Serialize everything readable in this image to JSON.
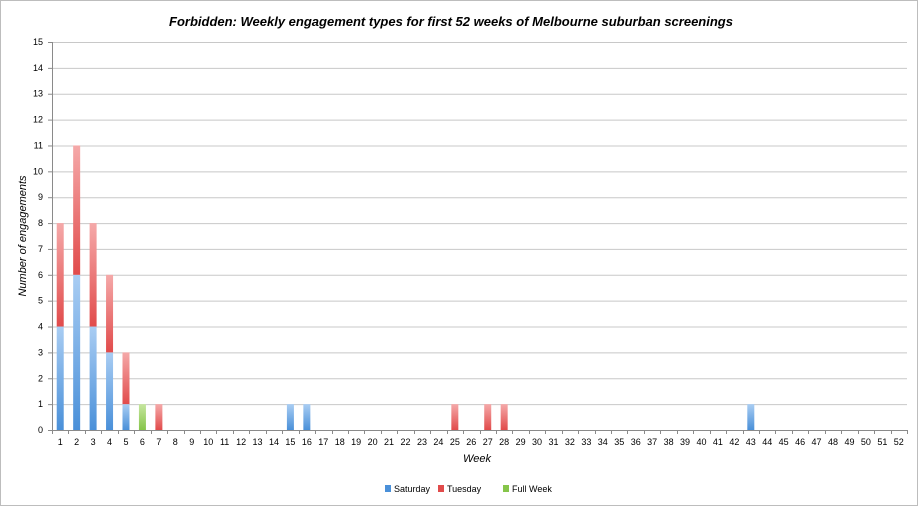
{
  "chart_data": {
    "type": "bar",
    "stacked": true,
    "title": "Forbidden: Weekly engagement types for first 52 weeks of Melbourne suburban screenings",
    "xlabel": "Week",
    "ylabel": "Number of engagements",
    "ylim": [
      0,
      15
    ],
    "yticks": [
      0,
      1,
      2,
      3,
      4,
      5,
      6,
      7,
      8,
      9,
      10,
      11,
      12,
      13,
      14,
      15
    ],
    "grid": true,
    "legend_position": "bottom",
    "categories": [
      "1",
      "2",
      "3",
      "4",
      "5",
      "6",
      "7",
      "8",
      "9",
      "10",
      "11",
      "12",
      "13",
      "14",
      "15",
      "16",
      "17",
      "18",
      "19",
      "20",
      "21",
      "22",
      "23",
      "24",
      "25",
      "26",
      "27",
      "28",
      "29",
      "30",
      "31",
      "32",
      "33",
      "34",
      "35",
      "36",
      "37",
      "38",
      "39",
      "40",
      "41",
      "42",
      "43",
      "44",
      "45",
      "46",
      "47",
      "48",
      "49",
      "50",
      "51",
      "52"
    ],
    "series": [
      {
        "name": "Saturday",
        "color": "#4a90d9",
        "light": "#a9cdf3",
        "values": [
          4,
          6,
          4,
          3,
          1,
          0,
          0,
          0,
          0,
          0,
          0,
          0,
          0,
          0,
          1,
          1,
          0,
          0,
          0,
          0,
          0,
          0,
          0,
          0,
          0,
          0,
          0,
          0,
          0,
          0,
          0,
          0,
          0,
          0,
          0,
          0,
          0,
          0,
          0,
          0,
          0,
          0,
          1,
          0,
          0,
          0,
          0,
          0,
          0,
          0,
          0,
          0
        ]
      },
      {
        "name": "Tuesday",
        "color": "#e14b4b",
        "light": "#f5a9a9",
        "values": [
          4,
          5,
          4,
          3,
          2,
          0,
          1,
          0,
          0,
          0,
          0,
          0,
          0,
          0,
          0,
          0,
          0,
          0,
          0,
          0,
          0,
          0,
          0,
          0,
          1,
          0,
          1,
          1,
          0,
          0,
          0,
          0,
          0,
          0,
          0,
          0,
          0,
          0,
          0,
          0,
          0,
          0,
          0,
          0,
          0,
          0,
          0,
          0,
          0,
          0,
          0,
          0
        ]
      },
      {
        "name": "Full Week",
        "color": "#86c54a",
        "light": "#c6e69f",
        "values": [
          0,
          0,
          0,
          0,
          0,
          1,
          0,
          0,
          0,
          0,
          0,
          0,
          0,
          0,
          0,
          0,
          0,
          0,
          0,
          0,
          0,
          0,
          0,
          0,
          0,
          0,
          0,
          0,
          0,
          0,
          0,
          0,
          0,
          0,
          0,
          0,
          0,
          0,
          0,
          0,
          0,
          0,
          0,
          0,
          0,
          0,
          0,
          0,
          0,
          0,
          0,
          0
        ]
      }
    ]
  }
}
